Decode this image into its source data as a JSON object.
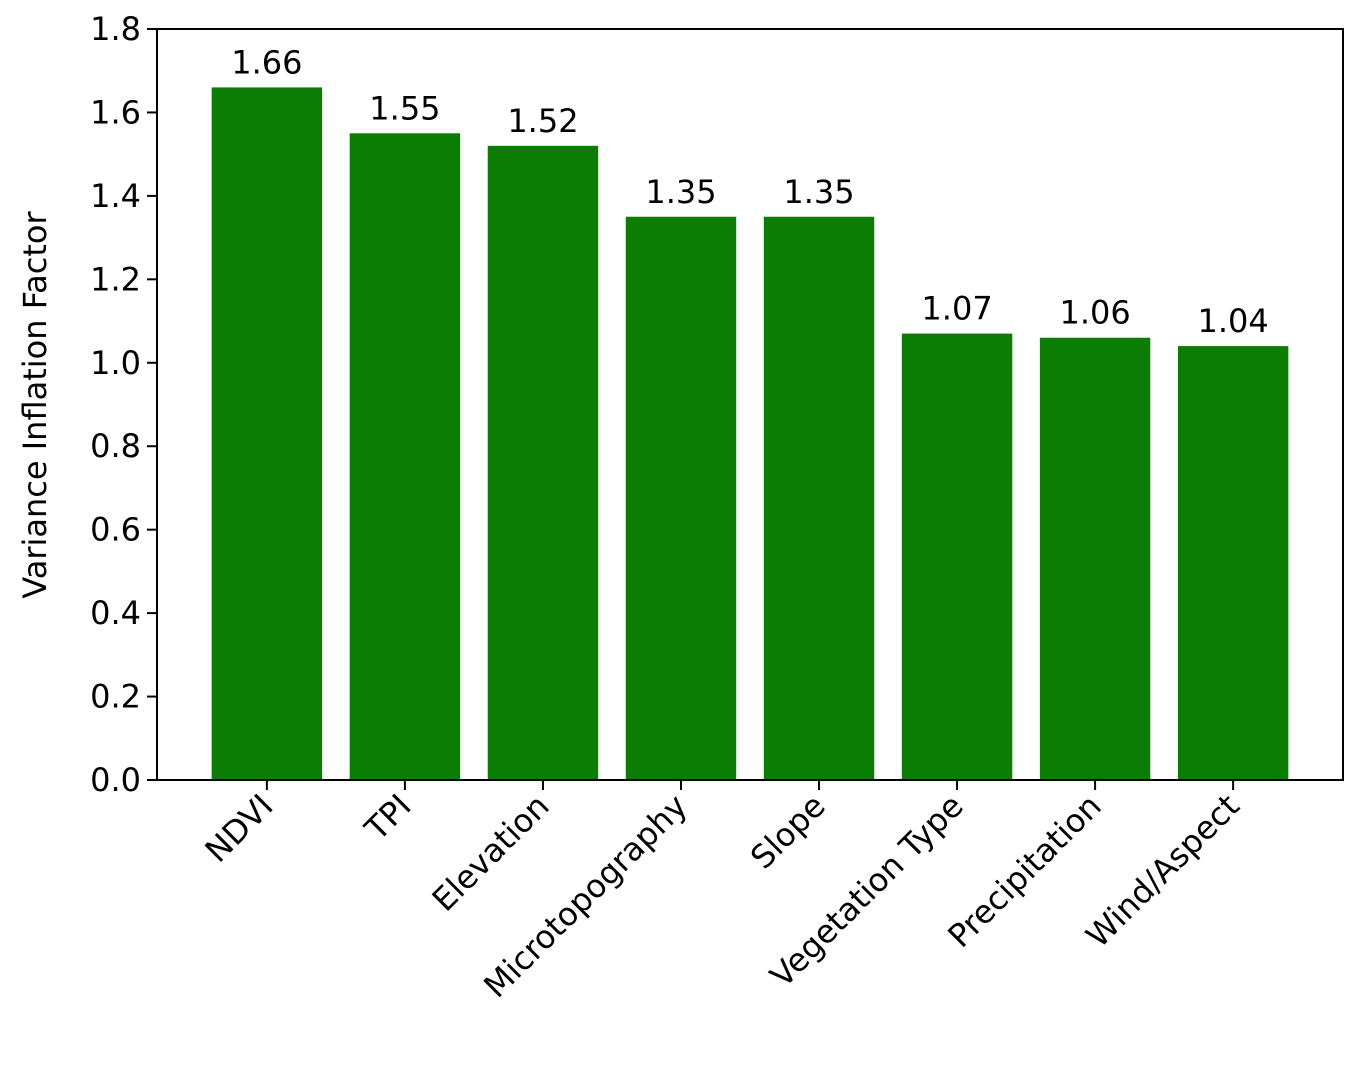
{
  "chart_data": {
    "type": "bar",
    "y_label": "Variance Inflation Factor",
    "categories": [
      "NDVI",
      "TPI",
      "Elevation",
      "Microtopography",
      "Slope",
      "Vegetation Type",
      "Precipitation",
      "Wind/Aspect"
    ],
    "values": [
      1.66,
      1.55,
      1.52,
      1.35,
      1.35,
      1.07,
      1.06,
      1.04
    ],
    "color": "#0b7d03",
    "ylim": [
      0,
      1.8
    ],
    "yticks": [
      {
        "value": 0,
        "label": "0.0"
      },
      0.2,
      0.4,
      0.6,
      0.8,
      {
        "value": 1,
        "label": "1.0"
      },
      1.2,
      1.4,
      1.6,
      1.8
    ],
    "grid": false
  }
}
